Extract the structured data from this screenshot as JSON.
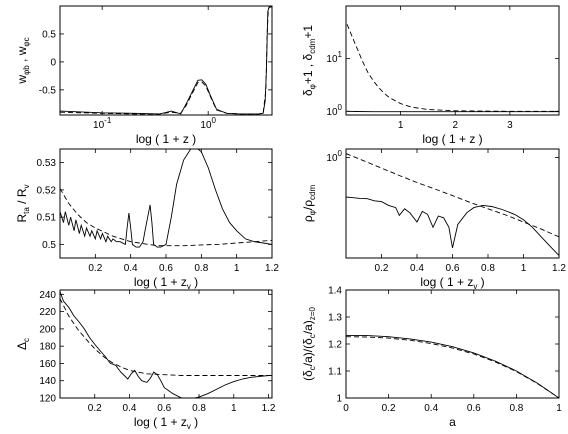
{
  "chart_data": [
    {
      "type": "line",
      "xscale": "log",
      "xlim": [
        0.04,
        4.0
      ],
      "ylim": [
        -0.95,
        1.0
      ],
      "xticks": [
        0.1,
        1
      ],
      "xtick_labels": [
        "10^-1",
        "10^0"
      ],
      "yticks": [
        -0.5,
        0,
        0.5
      ],
      "ytick_labels": [
        "-0.5",
        "0",
        "0.5"
      ],
      "xlabel": "log ( 1 + z )",
      "ylabel": "w_φb , w_φc",
      "series": [
        {
          "style": "solid",
          "x": [
            0.04,
            0.1,
            0.2,
            0.35,
            0.45,
            0.55,
            0.62,
            0.7,
            0.8,
            0.87,
            0.95,
            1.05,
            1.2,
            1.5,
            2.0,
            2.5,
            3.0,
            3.3,
            3.45,
            3.55,
            3.65,
            3.75,
            3.85,
            4.0
          ],
          "y": [
            -0.88,
            -0.91,
            -0.92,
            -0.93,
            -0.88,
            -0.93,
            -0.75,
            -0.55,
            -0.33,
            -0.32,
            -0.4,
            -0.6,
            -0.85,
            -0.92,
            -0.93,
            -0.93,
            -0.93,
            -0.92,
            -0.7,
            -0.1,
            0.9,
            0.98,
            0.98,
            0.98
          ]
        },
        {
          "style": "dashed",
          "x": [
            0.04,
            0.1,
            0.2,
            0.35,
            0.45,
            0.55,
            0.62,
            0.7,
            0.8,
            0.87,
            0.95,
            1.05,
            1.2,
            1.5,
            2.0,
            2.5,
            3.0,
            3.3,
            3.5,
            3.6,
            3.7,
            3.8,
            4.0
          ],
          "y": [
            -0.9,
            -0.92,
            -0.93,
            -0.93,
            -0.9,
            -0.92,
            -0.78,
            -0.58,
            -0.37,
            -0.36,
            -0.43,
            -0.62,
            -0.86,
            -0.92,
            -0.93,
            -0.93,
            -0.93,
            -0.92,
            -0.5,
            0.5,
            0.95,
            0.98,
            0.98
          ]
        }
      ]
    },
    {
      "type": "line",
      "yscale": "log",
      "xlim": [
        0,
        3.9
      ],
      "ylim": [
        0.85,
        100
      ],
      "xticks": [
        1,
        2,
        3
      ],
      "yticks": [
        1,
        10
      ],
      "ytick_labels": [
        "10^0",
        "10^1"
      ],
      "xlabel": "log ( 1 + z )",
      "ylabel": "δ_φ+1 , δ_cdm+1",
      "series": [
        {
          "style": "dashed",
          "x": [
            0.02,
            0.1,
            0.2,
            0.3,
            0.4,
            0.5,
            0.6,
            0.7,
            0.8,
            1.0,
            1.2,
            1.5,
            2.0,
            2.5,
            3.0,
            3.9
          ],
          "y": [
            45,
            28,
            16,
            9,
            5.5,
            3.8,
            2.8,
            2.2,
            1.8,
            1.4,
            1.2,
            1.08,
            1.02,
            1.01,
            1.0,
            1.0
          ]
        },
        {
          "style": "solid",
          "x": [
            0.02,
            0.2,
            0.5,
            1.0,
            2.0,
            3.0,
            3.9
          ],
          "y": [
            1.0,
            0.99,
            0.98,
            0.98,
            0.98,
            0.98,
            0.98
          ]
        }
      ]
    },
    {
      "type": "line",
      "xlim": [
        0,
        1.2
      ],
      "ylim": [
        0.495,
        0.535
      ],
      "xticks": [
        0.2,
        0.4,
        0.6,
        0.8,
        1,
        1.2
      ],
      "yticks": [
        0.5,
        0.51,
        0.52,
        0.53
      ],
      "xlabel": "log ( 1 + z_v )",
      "ylabel": "R_ta / R_v",
      "series": [
        {
          "style": "solid",
          "x": [
            0,
            0.02,
            0.03,
            0.05,
            0.06,
            0.08,
            0.09,
            0.11,
            0.12,
            0.14,
            0.15,
            0.17,
            0.18,
            0.2,
            0.21,
            0.23,
            0.24,
            0.26,
            0.27,
            0.29,
            0.3,
            0.32,
            0.34,
            0.37,
            0.38,
            0.39,
            0.4,
            0.41,
            0.43,
            0.45,
            0.47,
            0.49,
            0.51,
            0.52,
            0.53,
            0.55,
            0.57,
            0.6,
            0.63,
            0.66,
            0.7,
            0.74,
            0.77,
            0.8,
            0.84,
            0.88,
            0.92,
            0.96,
            1.0,
            1.05,
            1.1,
            1.15,
            1.2
          ],
          "y": [
            0.512,
            0.508,
            0.512,
            0.507,
            0.51,
            0.505,
            0.509,
            0.504,
            0.507,
            0.503,
            0.506,
            0.503,
            0.505,
            0.502,
            0.505,
            0.502,
            0.504,
            0.501,
            0.503,
            0.501,
            0.502,
            0.501,
            0.501,
            0.5,
            0.506,
            0.5115,
            0.506,
            0.5,
            0.499,
            0.499,
            0.501,
            0.508,
            0.5145,
            0.508,
            0.5,
            0.499,
            0.499,
            0.5,
            0.51,
            0.522,
            0.531,
            0.535,
            0.5355,
            0.534,
            0.528,
            0.52,
            0.513,
            0.508,
            0.505,
            0.502,
            0.501,
            0.5005,
            0.5
          ]
        },
        {
          "style": "dashed",
          "x": [
            0,
            0.05,
            0.1,
            0.15,
            0.2,
            0.25,
            0.3,
            0.35,
            0.4,
            0.45,
            0.5,
            0.55,
            0.6,
            0.7,
            0.8,
            0.9,
            1.0,
            1.1,
            1.2
          ],
          "y": [
            0.5205,
            0.515,
            0.511,
            0.508,
            0.506,
            0.5045,
            0.503,
            0.502,
            0.501,
            0.5005,
            0.5,
            0.4995,
            0.4995,
            0.4995,
            0.4998,
            0.5,
            0.5005,
            0.501,
            0.5015
          ]
        }
      ]
    },
    {
      "type": "line",
      "yscale": "log",
      "xlim": [
        0,
        1.2
      ],
      "ylim": [
        0.008,
        1.5
      ],
      "xticks": [
        0.2,
        0.4,
        0.6,
        0.8,
        1,
        1.2
      ],
      "yticks": [
        1
      ],
      "ytick_labels": [
        "10^0"
      ],
      "xlabel": "log ( 1 + z_v )",
      "ylabel": "ρ_φ/ρ_cdm",
      "series": [
        {
          "style": "dashed",
          "x": [
            0,
            0.1,
            0.2,
            0.3,
            0.4,
            0.5,
            0.6,
            0.7,
            0.8,
            0.9,
            1.0,
            1.1,
            1.2
          ],
          "y": [
            1.2,
            0.85,
            0.6,
            0.42,
            0.3,
            0.22,
            0.16,
            0.115,
            0.085,
            0.063,
            0.045,
            0.032,
            0.022
          ]
        },
        {
          "style": "solid",
          "x": [
            0,
            0.04,
            0.08,
            0.12,
            0.16,
            0.2,
            0.24,
            0.28,
            0.3,
            0.33,
            0.36,
            0.4,
            0.43,
            0.46,
            0.49,
            0.52,
            0.55,
            0.58,
            0.6,
            0.63,
            0.68,
            0.72,
            0.77,
            0.82,
            0.88,
            0.95,
            1.0,
            1.05,
            1.1,
            1.15,
            1.2
          ],
          "y": [
            0.15,
            0.145,
            0.14,
            0.138,
            0.125,
            0.12,
            0.1,
            0.09,
            0.062,
            0.085,
            0.07,
            0.045,
            0.075,
            0.065,
            0.035,
            0.06,
            0.055,
            0.035,
            0.013,
            0.04,
            0.07,
            0.09,
            0.1,
            0.095,
            0.082,
            0.065,
            0.05,
            0.035,
            0.022,
            0.014,
            0.009
          ]
        }
      ]
    },
    {
      "type": "line",
      "xlim": [
        0,
        1.22
      ],
      "ylim": [
        120,
        245
      ],
      "xticks": [
        0.2,
        0.4,
        0.6,
        0.8,
        1,
        1.2
      ],
      "yticks": [
        120,
        140,
        160,
        180,
        200,
        220,
        240
      ],
      "xlabel": "log ( 1 + z_v )",
      "ylabel": "Δ_c",
      "series": [
        {
          "style": "solid",
          "x": [
            0,
            0.02,
            0.05,
            0.08,
            0.11,
            0.14,
            0.17,
            0.2,
            0.23,
            0.26,
            0.29,
            0.32,
            0.35,
            0.37,
            0.39,
            0.41,
            0.43,
            0.45,
            0.47,
            0.5,
            0.52,
            0.54,
            0.56,
            0.58,
            0.6,
            0.65,
            0.7,
            0.75,
            0.8,
            0.85,
            0.9,
            0.95,
            1.0,
            1.05,
            1.1,
            1.15,
            1.2,
            1.22
          ],
          "y": [
            243,
            232,
            225,
            215,
            208,
            200,
            190,
            182,
            175,
            168,
            160,
            158,
            150,
            146,
            142,
            148,
            152,
            145,
            140,
            138,
            143,
            150,
            147,
            140,
            132,
            125,
            120,
            119,
            121,
            125,
            130,
            135,
            139,
            142,
            144,
            145,
            146,
            146
          ]
        },
        {
          "style": "dashed",
          "x": [
            0,
            0.05,
            0.1,
            0.15,
            0.2,
            0.25,
            0.3,
            0.35,
            0.4,
            0.45,
            0.5,
            0.6,
            0.7,
            0.8,
            0.9,
            1.0,
            1.1,
            1.22
          ],
          "y": [
            235,
            215,
            200,
            188,
            177,
            168,
            161,
            156,
            152,
            150,
            148,
            147,
            146,
            146,
            146,
            146,
            146,
            146
          ]
        }
      ]
    },
    {
      "type": "line",
      "xlim": [
        0,
        1
      ],
      "ylim": [
        1.0,
        1.4
      ],
      "xticks": [
        0,
        0.2,
        0.4,
        0.6,
        0.8,
        1
      ],
      "yticks": [
        1,
        1.1,
        1.2,
        1.3,
        1.4
      ],
      "xlabel": "a",
      "ylabel": "(δ_c/a)/(δ_c/a)_z=0",
      "series": [
        {
          "style": "solid",
          "x": [
            0,
            0.1,
            0.2,
            0.3,
            0.4,
            0.5,
            0.6,
            0.7,
            0.8,
            0.9,
            1.0
          ],
          "y": [
            1.232,
            1.231,
            1.227,
            1.219,
            1.207,
            1.19,
            1.167,
            1.137,
            1.1,
            1.054,
            1.0
          ]
        },
        {
          "style": "dashed",
          "x": [
            0,
            0.1,
            0.2,
            0.3,
            0.4,
            0.5,
            0.6,
            0.7,
            0.8,
            0.9,
            1.0
          ],
          "y": [
            1.227,
            1.226,
            1.222,
            1.214,
            1.202,
            1.185,
            1.163,
            1.134,
            1.098,
            1.053,
            1.0
          ]
        }
      ]
    }
  ]
}
